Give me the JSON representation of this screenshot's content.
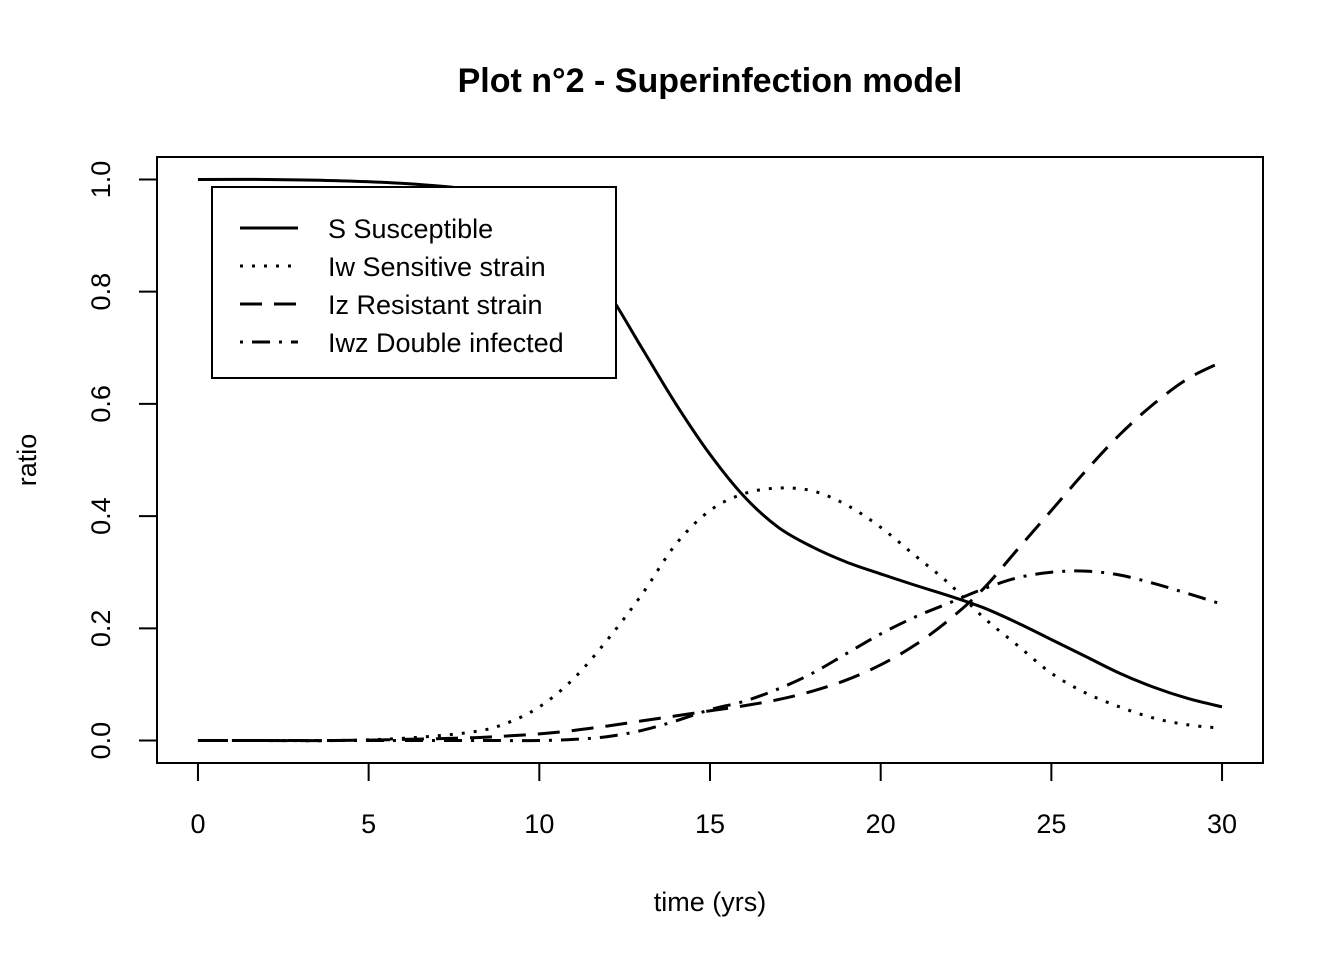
{
  "chart_data": {
    "type": "line",
    "title": "Plot n°2 - Superinfection model",
    "xlabel": "time (yrs)",
    "ylabel": "ratio",
    "xlim": [
      -1.2,
      31.2
    ],
    "ylim": [
      -0.04,
      1.04
    ],
    "xticks": [
      0,
      5,
      10,
      15,
      20,
      25,
      30
    ],
    "xtick_labels": [
      "0",
      "5",
      "10",
      "15",
      "20",
      "25",
      "30"
    ],
    "yticks": [
      0.0,
      0.2,
      0.4,
      0.6,
      0.8,
      1.0
    ],
    "ytick_labels": [
      "0.0",
      "0.2",
      "0.4",
      "0.6",
      "0.8",
      "1.0"
    ],
    "grid": false,
    "legend_position": "top-left",
    "x": [
      0,
      2,
      4,
      6,
      8,
      9,
      10,
      11,
      12,
      13,
      14,
      15,
      16,
      17,
      18,
      19,
      20,
      21,
      22,
      23,
      24,
      25,
      26,
      27,
      28,
      29,
      30
    ],
    "series": [
      {
        "name": "S Susceptible",
        "line_style": "solid",
        "color": "#000000",
        "values": [
          1.0,
          1.0,
          0.998,
          0.993,
          0.982,
          0.965,
          0.935,
          0.875,
          0.8,
          0.7,
          0.6,
          0.51,
          0.435,
          0.38,
          0.345,
          0.318,
          0.297,
          0.277,
          0.258,
          0.237,
          0.21,
          0.18,
          0.15,
          0.12,
          0.095,
          0.075,
          0.06
        ]
      },
      {
        "name": "Iw Sensitive strain",
        "line_style": "dotted",
        "color": "#000000",
        "values": [
          0.0,
          0.0,
          0.0,
          0.004,
          0.015,
          0.03,
          0.06,
          0.11,
          0.18,
          0.26,
          0.35,
          0.41,
          0.44,
          0.45,
          0.445,
          0.42,
          0.38,
          0.33,
          0.28,
          0.22,
          0.17,
          0.12,
          0.085,
          0.06,
          0.04,
          0.028,
          0.022
        ]
      },
      {
        "name": "Iz Resistant strain",
        "line_style": "dashed",
        "color": "#000000",
        "values": [
          0.0,
          0.0,
          0.0,
          0.002,
          0.005,
          0.008,
          0.012,
          0.018,
          0.026,
          0.035,
          0.044,
          0.053,
          0.062,
          0.073,
          0.088,
          0.108,
          0.135,
          0.17,
          0.215,
          0.27,
          0.34,
          0.41,
          0.48,
          0.545,
          0.6,
          0.645,
          0.675
        ]
      },
      {
        "name": "Iwz Double infected",
        "line_style": "dotdash",
        "color": "#000000",
        "values": [
          0.0,
          0.0,
          0.0,
          0.0,
          0.0,
          0.0,
          0.0,
          0.002,
          0.007,
          0.018,
          0.035,
          0.055,
          0.07,
          0.092,
          0.12,
          0.155,
          0.19,
          0.22,
          0.245,
          0.27,
          0.29,
          0.3,
          0.302,
          0.295,
          0.28,
          0.262,
          0.243
        ]
      }
    ]
  }
}
